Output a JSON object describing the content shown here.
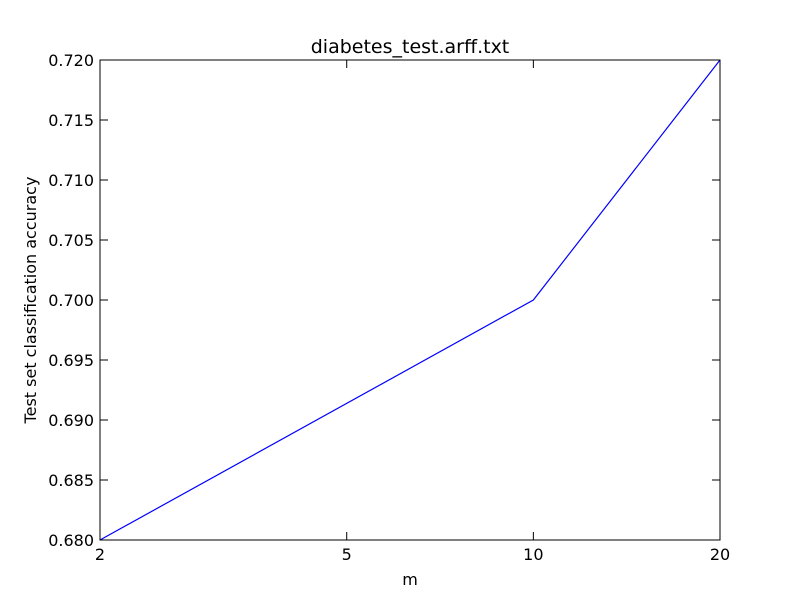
{
  "chart_data": {
    "type": "line",
    "title": "diabetes_test.arff.txt",
    "xlabel": "m",
    "ylabel": "Test set classification accuracy",
    "x_ticks": [
      "2",
      "5",
      "10",
      "20"
    ],
    "y_ticks": [
      "0.680",
      "0.685",
      "0.690",
      "0.695",
      "0.700",
      "0.705",
      "0.710",
      "0.715",
      "0.720"
    ],
    "ylim": [
      0.68,
      0.72
    ],
    "grid": false,
    "legend": "none",
    "series": [
      {
        "x": [
          2,
          10,
          20
        ],
        "y": [
          0.68,
          0.7,
          0.72
        ],
        "color": "#0000ff"
      }
    ]
  }
}
